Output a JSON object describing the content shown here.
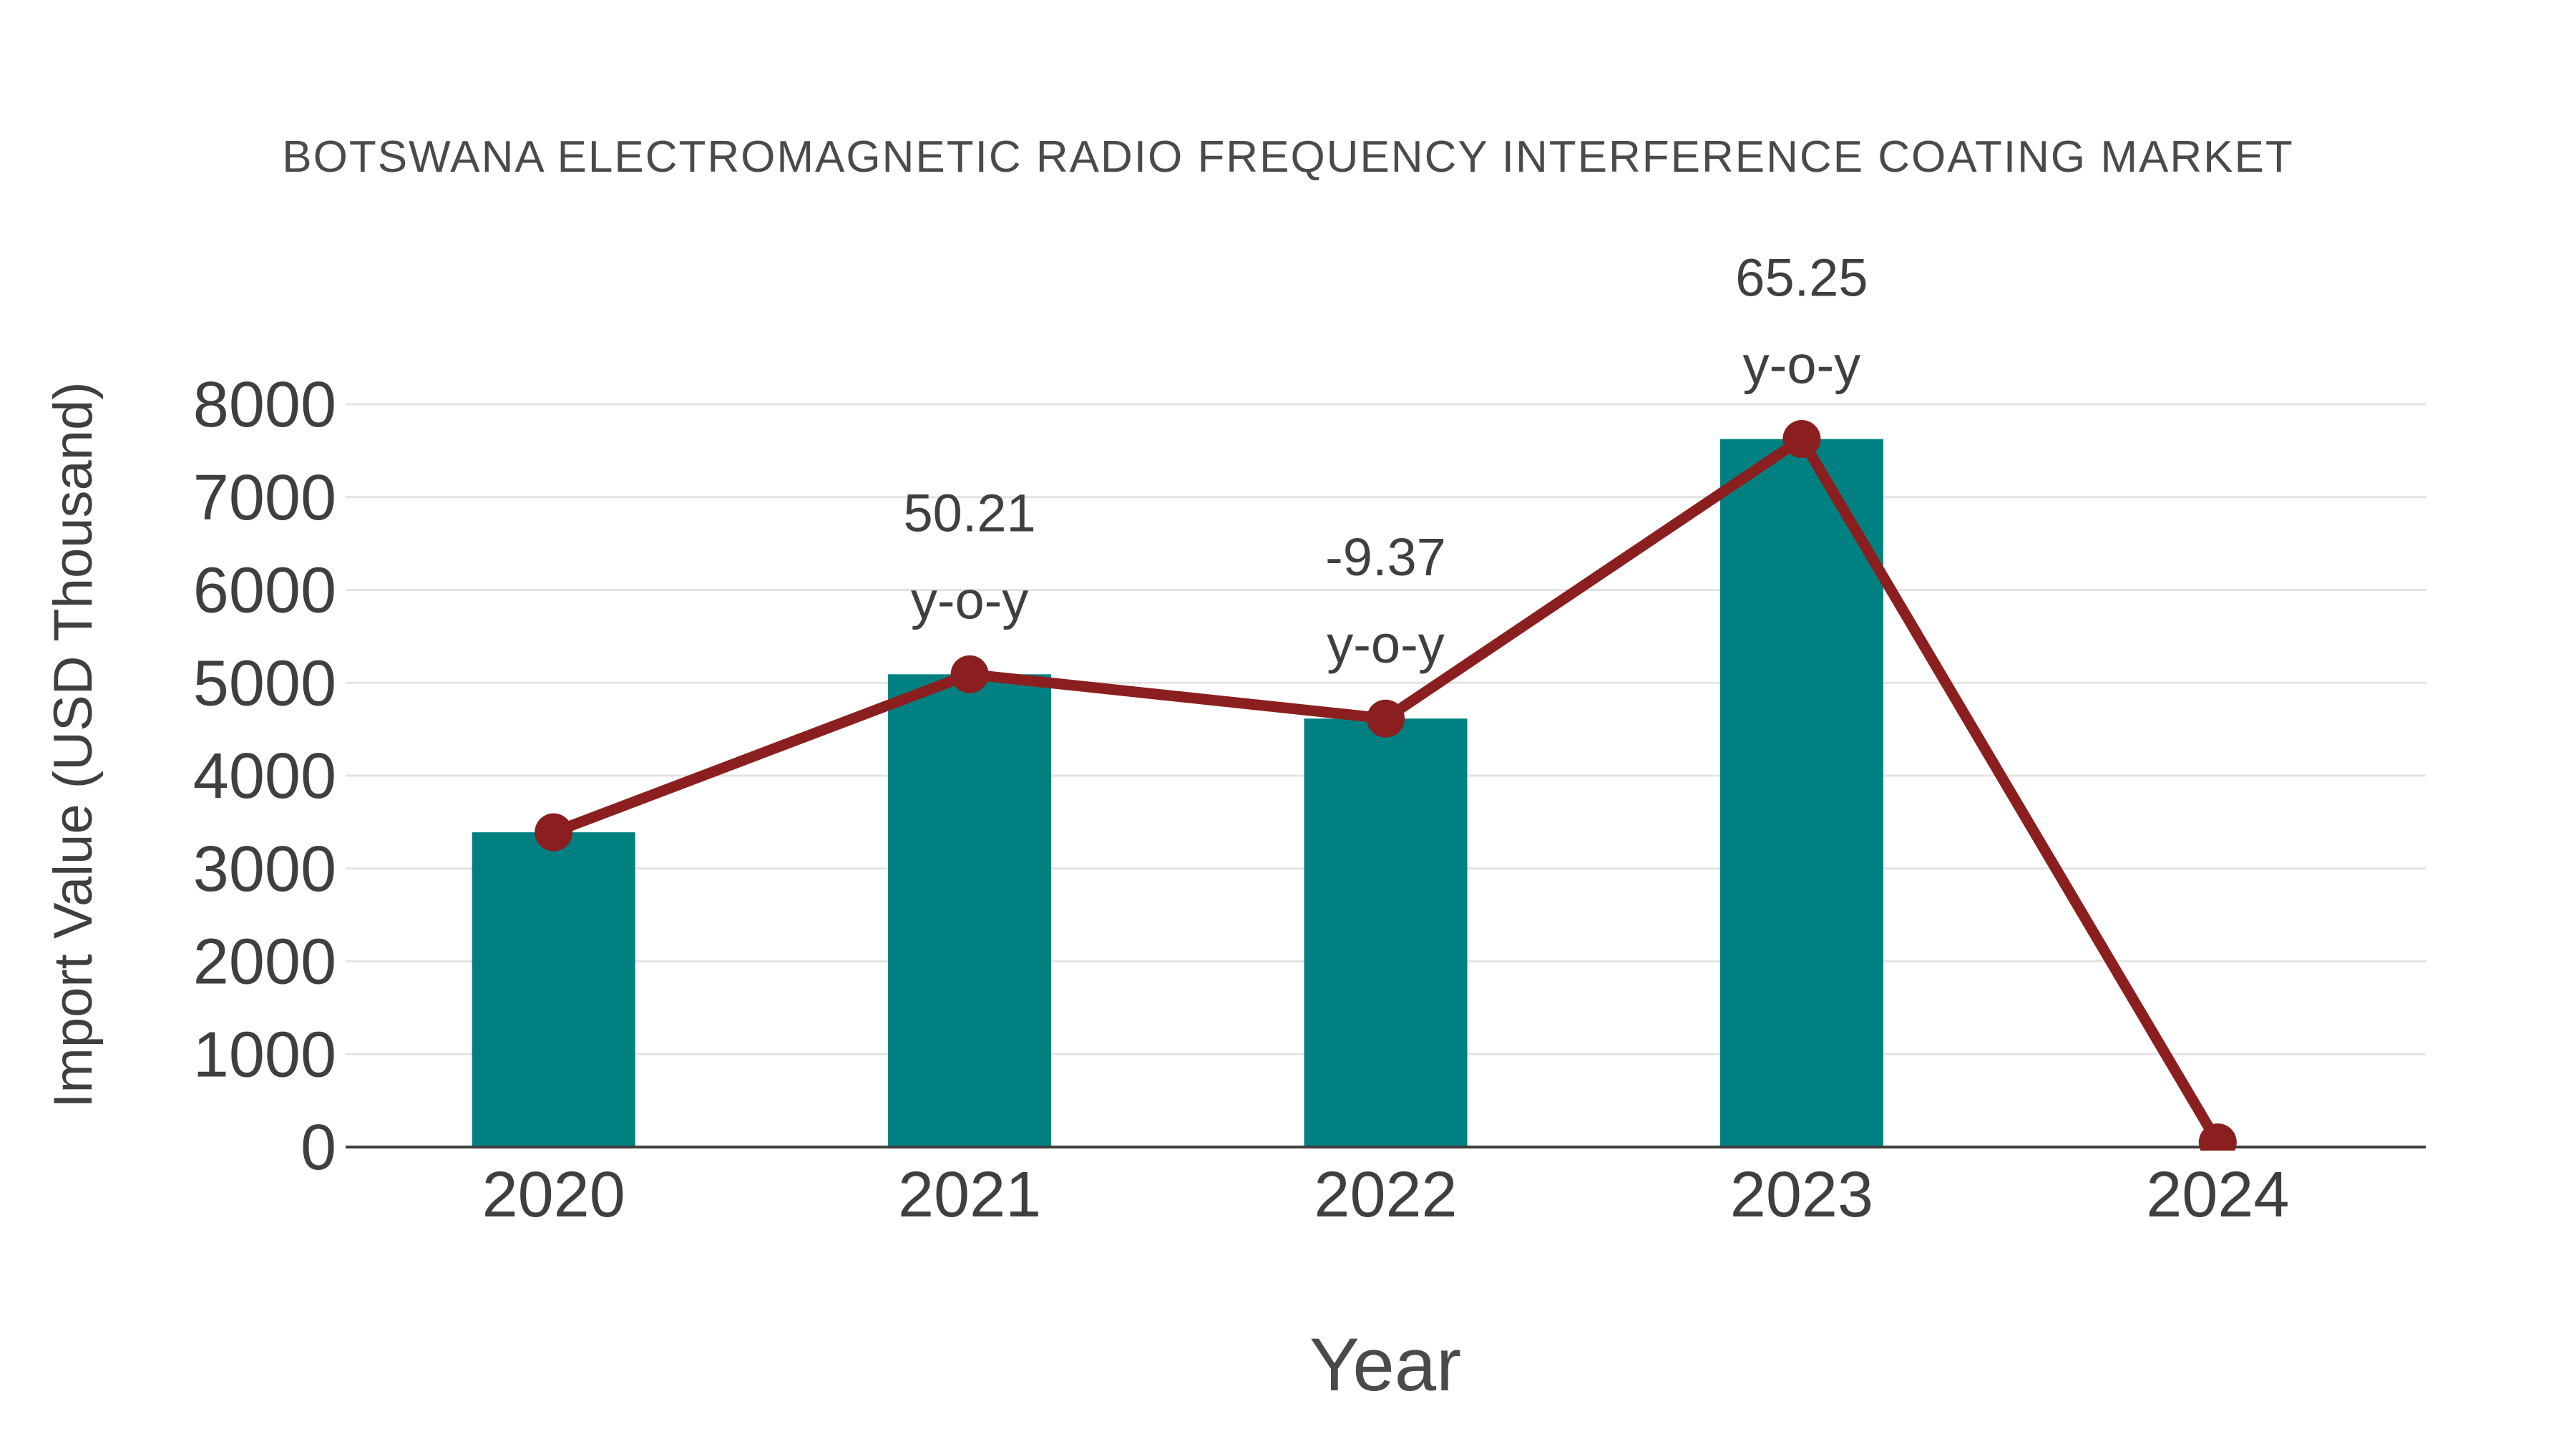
{
  "chart_data": {
    "type": "bar",
    "title": "BOTSWANA ELECTROMAGNETIC RADIO FREQUENCY INTERFERENCE COATING MARKET",
    "xlabel": "Year",
    "ylabel": "Import Value (USD Thousand)",
    "categories": [
      "2020",
      "2021",
      "2022",
      "2023",
      "2024"
    ],
    "series": [
      {
        "name": "Import Value bars",
        "type": "bar",
        "values": [
          3390,
          5092,
          4615,
          7626,
          null
        ]
      },
      {
        "name": "Import Value trend line",
        "type": "line",
        "values": [
          3390,
          5092,
          4615,
          7626,
          50
        ]
      }
    ],
    "annotations": [
      {
        "category": "2021",
        "line1": "50.21",
        "line2": "y-o-y"
      },
      {
        "category": "2022",
        "line1": "-9.37",
        "line2": "y-o-y"
      },
      {
        "category": "2023",
        "line1": "65.25",
        "line2": "y-o-y"
      }
    ],
    "ylim": [
      0,
      8000
    ],
    "ytick_step": 1000,
    "yticks": [
      "0",
      "1000",
      "2000",
      "3000",
      "4000",
      "5000",
      "6000",
      "7000",
      "8000"
    ],
    "grid": true,
    "legend": "none",
    "colors": {
      "bar": "#008080",
      "line": "#8B1E1E",
      "grid": "#e3e3e3",
      "axis": "#3f3f3f",
      "text": "#3f3f3f",
      "annotation": "#4a4a4a",
      "background": "#ffffff"
    }
  }
}
